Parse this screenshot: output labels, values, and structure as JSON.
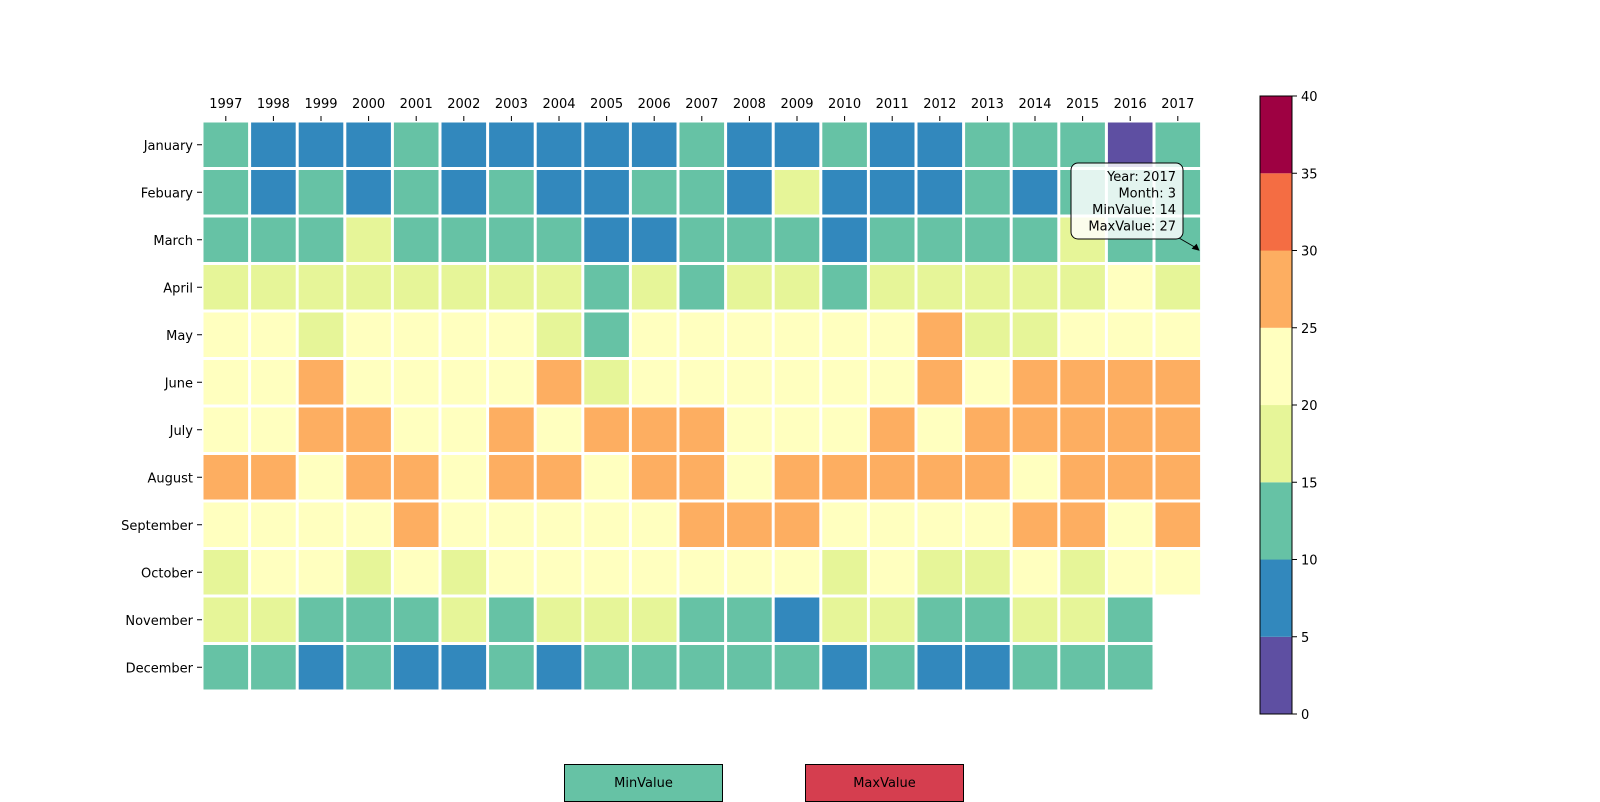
{
  "chart_data": {
    "type": "heatmap",
    "years": [
      "1997",
      "1998",
      "1999",
      "2000",
      "2001",
      "2002",
      "2003",
      "2004",
      "2005",
      "2006",
      "2007",
      "2008",
      "2009",
      "2010",
      "2011",
      "2012",
      "2013",
      "2014",
      "2015",
      "2016",
      "2017"
    ],
    "months": [
      "January",
      "Febuary",
      "March",
      "April",
      "May",
      "June",
      "July",
      "August",
      "September",
      "October",
      "November",
      "December"
    ],
    "values": [
      [
        12,
        8,
        8,
        8,
        12,
        8,
        8,
        8,
        8,
        8,
        12,
        8,
        8,
        12,
        8,
        8,
        12,
        12,
        12,
        3,
        12
      ],
      [
        12,
        8,
        12,
        8,
        12,
        8,
        12,
        8,
        8,
        12,
        12,
        8,
        18,
        8,
        8,
        8,
        12,
        8,
        12,
        12,
        12
      ],
      [
        12,
        12,
        12,
        18,
        12,
        12,
        12,
        12,
        8,
        8,
        12,
        12,
        12,
        8,
        12,
        12,
        12,
        12,
        18,
        12,
        12
      ],
      [
        18,
        18,
        18,
        18,
        18,
        18,
        18,
        18,
        12,
        18,
        12,
        18,
        18,
        12,
        18,
        18,
        18,
        18,
        18,
        23,
        18
      ],
      [
        23,
        23,
        18,
        23,
        23,
        23,
        23,
        18,
        12,
        23,
        23,
        23,
        23,
        23,
        23,
        28,
        18,
        18,
        23,
        23,
        23
      ],
      [
        23,
        23,
        28,
        23,
        23,
        23,
        23,
        28,
        18,
        23,
        23,
        23,
        23,
        23,
        23,
        28,
        23,
        28,
        28,
        28,
        28
      ],
      [
        23,
        23,
        28,
        28,
        23,
        23,
        28,
        23,
        28,
        28,
        28,
        23,
        23,
        23,
        28,
        23,
        28,
        28,
        28,
        28,
        28
      ],
      [
        28,
        28,
        23,
        28,
        28,
        23,
        28,
        28,
        23,
        28,
        28,
        23,
        28,
        28,
        28,
        28,
        28,
        23,
        28,
        28,
        28
      ],
      [
        23,
        23,
        23,
        23,
        28,
        23,
        23,
        23,
        23,
        23,
        28,
        28,
        28,
        23,
        23,
        23,
        23,
        28,
        28,
        23,
        28
      ],
      [
        18,
        23,
        23,
        18,
        23,
        18,
        23,
        23,
        23,
        23,
        23,
        23,
        23,
        18,
        23,
        18,
        18,
        23,
        18,
        23,
        23
      ],
      [
        18,
        18,
        12,
        12,
        12,
        18,
        12,
        18,
        18,
        18,
        12,
        12,
        8,
        18,
        18,
        12,
        12,
        18,
        18,
        12,
        null
      ],
      [
        12,
        12,
        8,
        12,
        8,
        8,
        12,
        8,
        12,
        12,
        12,
        12,
        12,
        8,
        12,
        8,
        8,
        12,
        12,
        12,
        null
      ]
    ],
    "colorbar": {
      "bounds": [
        0,
        5,
        10,
        15,
        20,
        25,
        30,
        35,
        40
      ],
      "colors": [
        "#5e4fa2",
        "#3288bd",
        "#66c2a5",
        "#e6f598",
        "#ffffbf",
        "#fdae61",
        "#f46d43",
        "#9e0142"
      ],
      "ticks": [
        "0",
        "5",
        "10",
        "15",
        "20",
        "25",
        "30",
        "35",
        "40"
      ]
    },
    "tooltip": {
      "lines": [
        "Year: 2017",
        "Month: 3",
        "MinValue: 14",
        "MaxValue: 27"
      ],
      "target_year": "2017",
      "target_month": "March"
    }
  },
  "buttons": {
    "min_label": "MinValue",
    "min_color": "#66c2a5",
    "max_label": "MaxValue",
    "max_color": "#d53e4f"
  }
}
